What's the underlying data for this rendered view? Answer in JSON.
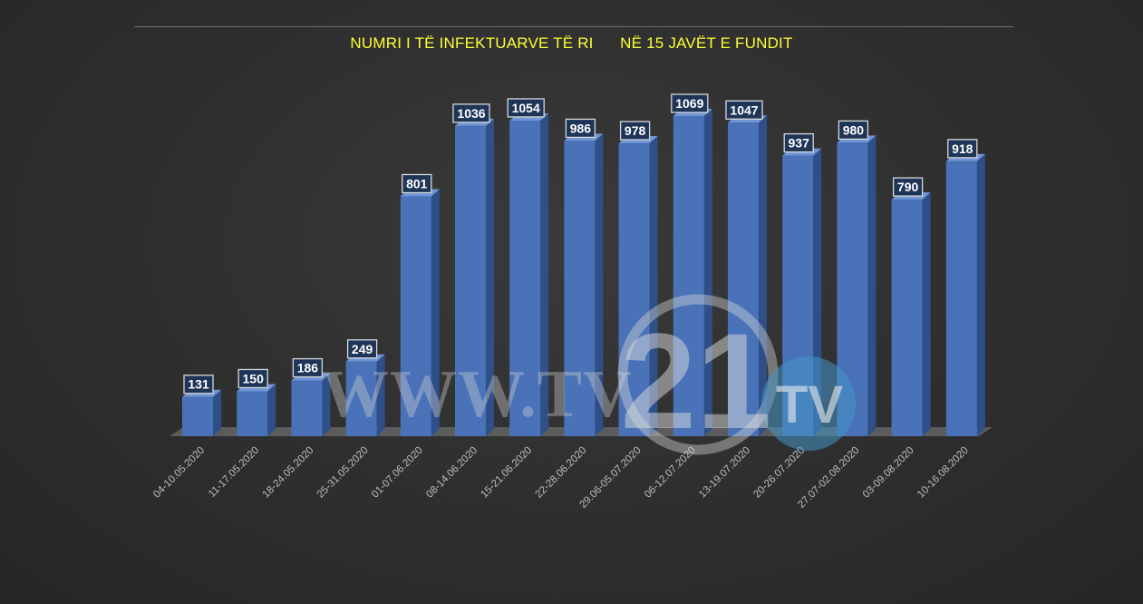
{
  "title_part1": "NUMRI I TË INFEKTUARVE TË RI",
  "title_part2": "NË 15 JAVËT E FUNDIT",
  "watermark": {
    "site": "WWW.TV",
    "number": "21",
    "badge": "TV"
  },
  "colors": {
    "bar_front": "#4a72b8",
    "bar_side": "#2f4f88",
    "bar_top": "#6f95d6",
    "label_bg": "#1f3558",
    "title": "#ffff33",
    "floor": "#5c5c5c"
  },
  "chart_data": {
    "type": "bar",
    "title": "NUMRI I TË INFEKTUARVE TË RI     NË 15 JAVËT E FUNDIT",
    "categories": [
      "04-10.05.2020",
      "11-17.05.2020",
      "18-24.05.2020",
      "25-31.05.2020",
      "01-07.06.2020",
      "08-14.06.2020",
      "15-21.06.2020",
      "22-28.06.2020",
      "29.06-05.07.2020",
      "06-12.07.2020",
      "13-19.07.2020",
      "20-26.07.2020",
      "27.07-02.08.2020",
      "03-09.08.2020",
      "10-16.08.2020"
    ],
    "values": [
      131,
      150,
      186,
      249,
      801,
      1036,
      1054,
      986,
      978,
      1069,
      1047,
      937,
      980,
      790,
      918
    ],
    "xlabel": "",
    "ylabel": "",
    "ylim": [
      0,
      1069
    ],
    "grid": false,
    "legend": "none"
  }
}
